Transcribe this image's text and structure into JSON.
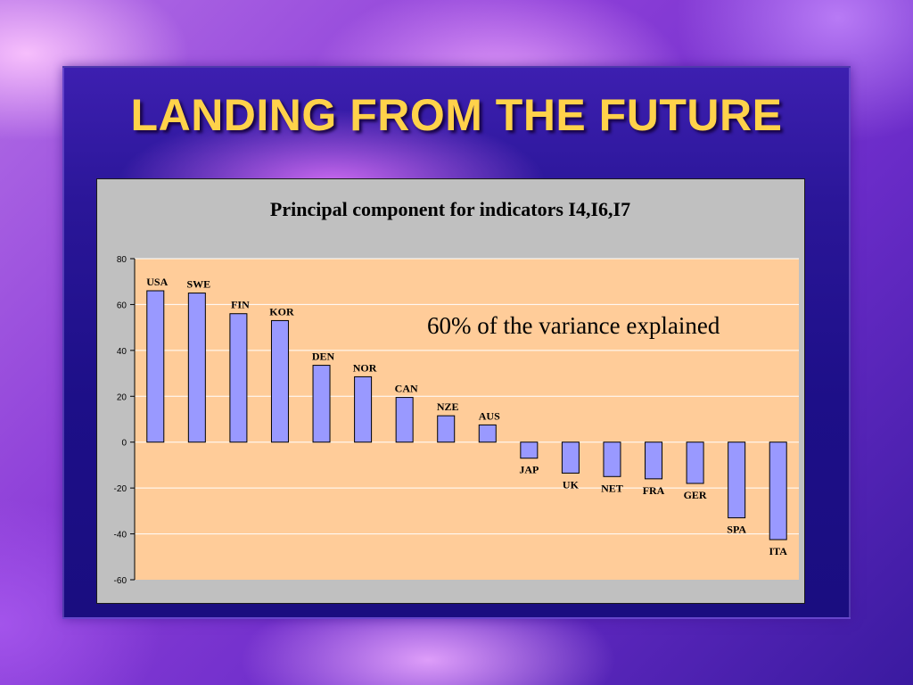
{
  "slide": {
    "title": "LANDING FROM THE FUTURE"
  },
  "colors": {
    "bar_fill": "#9999ff",
    "plot_bg": "#ffcc99",
    "title_color": "#ffd24a"
  },
  "chart_data": {
    "type": "bar",
    "title": "Principal component for indicators I4,I6,I7",
    "annotation": "60% of the variance explained",
    "xlabel": "",
    "ylabel": "",
    "ylim": [
      -60,
      80
    ],
    "yticks": [
      80,
      60,
      40,
      20,
      0,
      -20,
      -40,
      -60
    ],
    "grid": true,
    "legend": "none",
    "categories": [
      "USA",
      "SWE",
      "FIN",
      "KOR",
      "DEN",
      "NOR",
      "CAN",
      "NZE",
      "AUS",
      "JAP",
      "UK",
      "NET",
      "FRA",
      "GER",
      "SPA",
      "ITA"
    ],
    "values": [
      66,
      65,
      56,
      53,
      33.5,
      28.5,
      19.5,
      11.5,
      7.5,
      -7,
      -13.5,
      -15,
      -16,
      -18,
      -33,
      -42.5
    ]
  }
}
